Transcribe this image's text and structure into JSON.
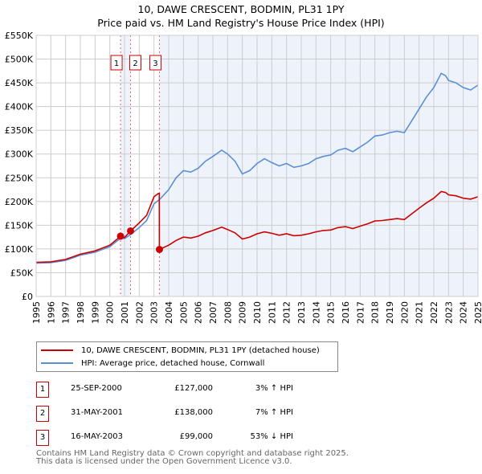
{
  "chart_data": {
    "type": "line",
    "title": "10, DAWE CRESCENT, BODMIN, PL31 1PY",
    "subtitle": "Price paid vs. HM Land Registry's House Price Index (HPI)",
    "xlim": [
      1995,
      2025
    ],
    "ylim": [
      0,
      550000
    ],
    "yticks": [
      0,
      50000,
      100000,
      150000,
      200000,
      250000,
      300000,
      350000,
      400000,
      450000,
      500000,
      550000
    ],
    "ytick_labels": [
      "£0",
      "£50K",
      "£100K",
      "£150K",
      "£200K",
      "£250K",
      "£300K",
      "£350K",
      "£400K",
      "£450K",
      "£500K",
      "£550K"
    ],
    "xticks": [
      "1995",
      "1996",
      "1997",
      "1998",
      "1999",
      "2000",
      "2001",
      "2002",
      "2003",
      "2004",
      "2005",
      "2006",
      "2007",
      "2008",
      "2009",
      "2010",
      "2011",
      "2012",
      "2013",
      "2014",
      "2015",
      "2016",
      "2017",
      "2018",
      "2019",
      "2020",
      "2021",
      "2022",
      "2023",
      "2024",
      "2025"
    ],
    "grid": true,
    "series": [
      {
        "name": "10, DAWE CRESCENT, BODMIN, PL31 1PY (detached house)",
        "color": "#cc0000",
        "x": [
          1995,
          1996,
          1997,
          1998,
          1999,
          2000,
          2000.73,
          2001,
          2001.41,
          2002,
          2002.5,
          2003,
          2003.3,
          2003.36,
          2003.37,
          2004,
          2004.5,
          2005,
          2005.5,
          2006,
          2006.5,
          2007,
          2007.6,
          2008,
          2008.5,
          2009,
          2009.5,
          2010,
          2010.5,
          2011,
          2011.5,
          2012,
          2012.5,
          2013,
          2013.5,
          2014,
          2014.5,
          2015,
          2015.5,
          2016,
          2016.5,
          2017,
          2017.5,
          2018,
          2018.5,
          2019,
          2019.5,
          2020,
          2020.5,
          2021,
          2021.5,
          2022,
          2022.5,
          2022.8,
          2023,
          2023.5,
          2024,
          2024.5,
          2025
        ],
        "y": [
          72,
          73,
          78,
          89,
          96,
          108,
          127,
          124,
          138,
          155,
          171,
          210,
          217,
          217,
          99,
          108,
          118,
          125,
          123,
          127,
          134,
          139,
          146,
          141,
          134,
          121,
          125,
          132,
          136,
          133,
          129,
          132,
          128,
          129,
          132,
          136,
          139,
          140,
          145,
          147,
          143,
          148,
          153,
          159,
          160,
          162,
          164,
          162,
          174,
          186,
          197,
          207,
          221,
          219,
          214,
          212,
          207,
          205,
          210
        ]
      },
      {
        "name": "HPI: Average price, detached house, Cornwall",
        "color": "#5b8fd4",
        "x": [
          1995,
          1996,
          1997,
          1998,
          1999,
          2000,
          2000.75,
          2001,
          2001.4,
          2002,
          2002.5,
          2003,
          2003.4,
          2004,
          2004.5,
          2005,
          2005.5,
          2006,
          2006.5,
          2007,
          2007.6,
          2008,
          2008.5,
          2009,
          2009.5,
          2010,
          2010.5,
          2011,
          2011.5,
          2012,
          2012.5,
          2013,
          2013.5,
          2014,
          2014.5,
          2015,
          2015.5,
          2016,
          2016.5,
          2017,
          2017.5,
          2018,
          2018.5,
          2019,
          2019.5,
          2020,
          2020.5,
          2021,
          2021.5,
          2022,
          2022.5,
          2022.8,
          2023,
          2023.5,
          2024,
          2024.5,
          2025
        ],
        "y": [
          70,
          71,
          76,
          87,
          93,
          105,
          123,
          122,
          130,
          145,
          160,
          195,
          205,
          225,
          250,
          265,
          262,
          270,
          285,
          295,
          308,
          300,
          285,
          258,
          265,
          280,
          290,
          282,
          275,
          280,
          272,
          275,
          280,
          290,
          295,
          298,
          308,
          312,
          305,
          315,
          325,
          338,
          340,
          345,
          348,
          345,
          370,
          395,
          420,
          440,
          470,
          465,
          455,
          450,
          440,
          435,
          445
        ]
      }
    ],
    "y_units": "thousands GBP",
    "sales": [
      {
        "id": "1",
        "x": 2000.73,
        "value": 127000,
        "date": "25-SEP-2000",
        "price": "£127,000",
        "hpi": "3% ↑ HPI"
      },
      {
        "id": "2",
        "x": 2001.41,
        "value": 138000,
        "date": "31-MAY-2001",
        "price": "£138,000",
        "hpi": "7% ↑ HPI"
      },
      {
        "id": "3",
        "x": 2003.37,
        "value": 99000,
        "date": "16-MAY-2003",
        "price": "£99,000",
        "hpi": "53% ↓ HPI"
      }
    ],
    "legend_placement": "below"
  },
  "footer": {
    "line1": "Contains HM Land Registry data © Crown copyright and database right 2025.",
    "line2": "This data is licensed under the Open Government Licence v3.0."
  }
}
